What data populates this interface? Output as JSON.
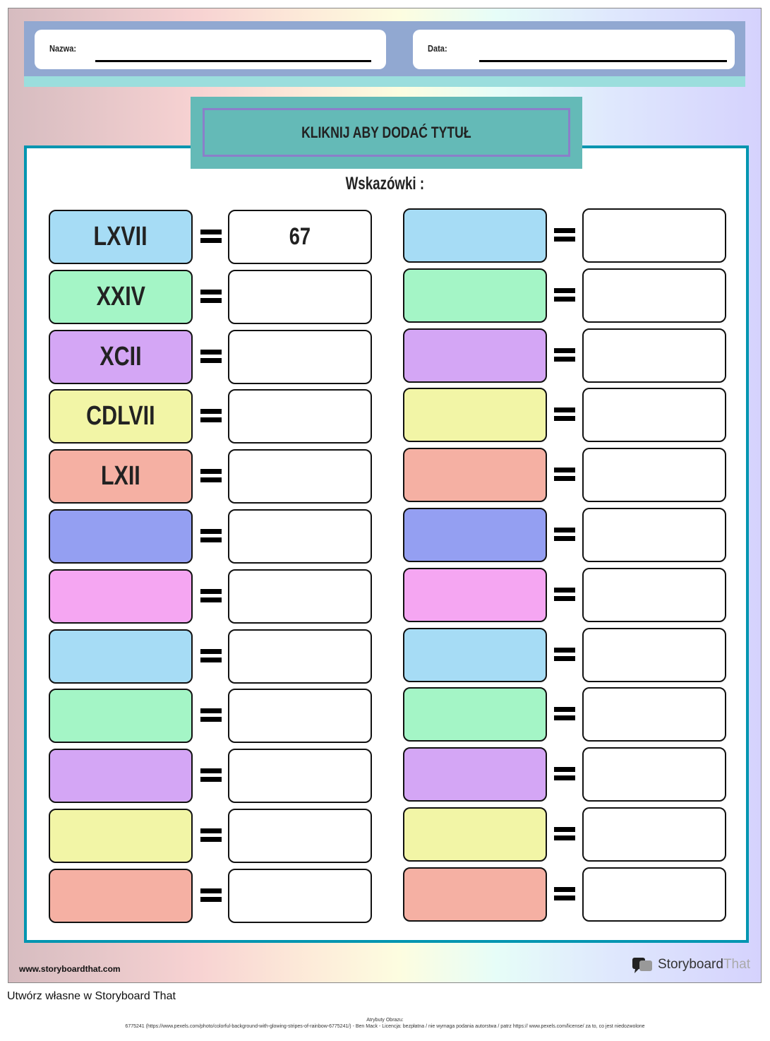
{
  "header": {
    "name_label": "Nazwa:",
    "date_label": "Data:"
  },
  "title": "KLIKNIJ ABY DODAĆ TYTUŁ",
  "hint_label": "Wskazówki :",
  "colors": [
    "#a6dcf5",
    "#a4f5c6",
    "#d4a6f5",
    "#f2f5a6",
    "#f5b0a3",
    "#949ff2",
    "#f5a6f2",
    "#a6dcf5",
    "#a4f5c6",
    "#d4a6f5",
    "#f2f5a6",
    "#f5b0a3"
  ],
  "rows": [
    {
      "left_roman": "LXVII",
      "left_answer": "67",
      "right_roman": "",
      "right_answer": ""
    },
    {
      "left_roman": "XXIV",
      "left_answer": "",
      "right_roman": "",
      "right_answer": ""
    },
    {
      "left_roman": "XCII",
      "left_answer": "",
      "right_roman": "",
      "right_answer": ""
    },
    {
      "left_roman": "CDLVII",
      "left_answer": "",
      "right_roman": "",
      "right_answer": ""
    },
    {
      "left_roman": "LXII",
      "left_answer": "",
      "right_roman": "",
      "right_answer": ""
    },
    {
      "left_roman": "",
      "left_answer": "",
      "right_roman": "",
      "right_answer": ""
    },
    {
      "left_roman": "",
      "left_answer": "",
      "right_roman": "",
      "right_answer": ""
    },
    {
      "left_roman": "",
      "left_answer": "",
      "right_roman": "",
      "right_answer": ""
    },
    {
      "left_roman": "",
      "left_answer": "",
      "right_roman": "",
      "right_answer": ""
    },
    {
      "left_roman": "",
      "left_answer": "",
      "right_roman": "",
      "right_answer": ""
    },
    {
      "left_roman": "",
      "left_answer": "",
      "right_roman": "",
      "right_answer": ""
    },
    {
      "left_roman": "",
      "left_answer": "",
      "right_roman": "",
      "right_answer": ""
    }
  ],
  "footer": {
    "url": "www.storyboardthat.com",
    "logo_main": "Storyboard",
    "logo_accent": "That",
    "create_own": "Utwórz własne w Storyboard That",
    "attribution_title": "Atrybuty Obrazu:",
    "attribution_text": "6775241 (https://www.pexels.com/photo/colorful-background-with-glowing-stripes-of-rainbow-6775241/) - Ben Mack - Licencja: bezpłatna / nie wymaga podania autorstwa / patrz https:// www.pexels.com/license/ za to, co jest niedozwolone"
  }
}
